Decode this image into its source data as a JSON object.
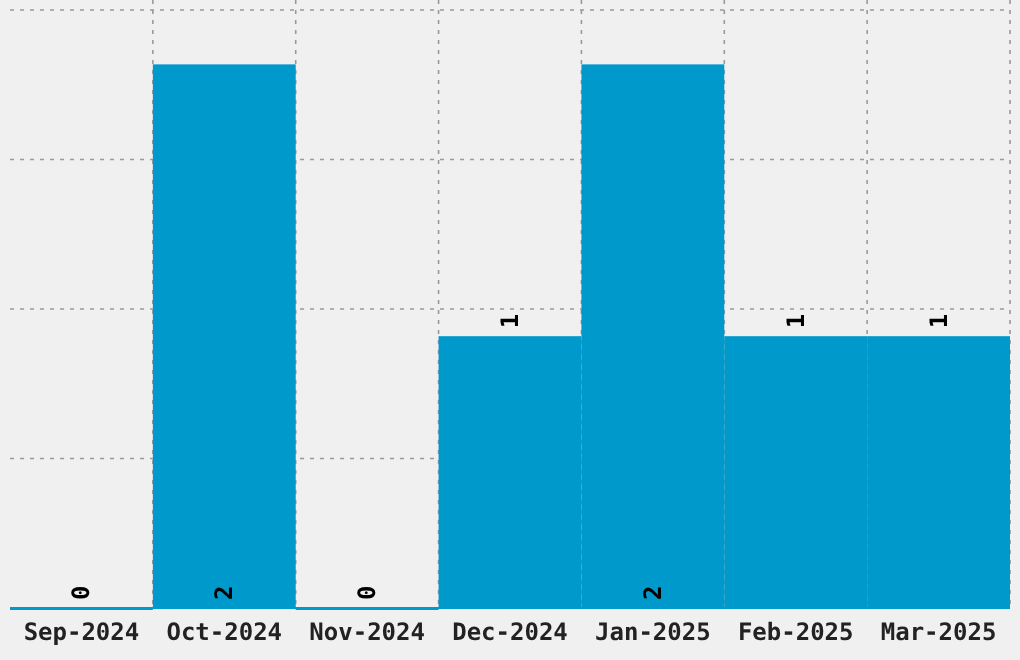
{
  "chart_data": {
    "type": "bar",
    "categories": [
      "Sep-2024",
      "Oct-2024",
      "Nov-2024",
      "Dec-2024",
      "Jan-2025",
      "Feb-2025",
      "Mar-2025"
    ],
    "values": [
      0,
      2,
      0,
      1,
      2,
      1,
      1
    ],
    "color": "#0099cc",
    "data_labels": true,
    "grid": true,
    "ylim": [
      0,
      2.2
    ],
    "yticks": [
      {
        "value": 0.55,
        "label": null
      },
      {
        "value": 1.1,
        "label": null
      },
      {
        "value": 1.65,
        "label": null
      },
      {
        "value": 2.2,
        "label": null
      }
    ],
    "tick_labels": "x"
  }
}
